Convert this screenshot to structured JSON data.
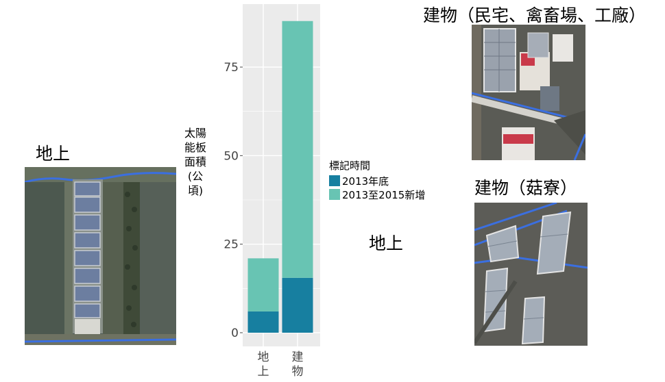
{
  "labels": {
    "ground_left": "地上",
    "building_top": "建物（民宅、禽畜場、工廠）",
    "building_mushroom": "建物（菇寮）",
    "ground_mid": "地上"
  },
  "colors": {
    "panel_bg": "#ebebeb",
    "grid": "#ffffff",
    "end_2013": "#177fa0",
    "new_2015": "#68c4b3"
  },
  "chart_data": {
    "type": "bar",
    "stacked": true,
    "categories": [
      "地上",
      "建物"
    ],
    "series": [
      {
        "name": "2013年底",
        "values": [
          6,
          15.5
        ]
      },
      {
        "name": "2013至2015新增",
        "values": [
          15,
          72.5
        ]
      }
    ],
    "ylabel": "太陽能板面積(公頃)",
    "ylim": [
      0,
      88
    ],
    "yticks": [
      0,
      25,
      50,
      75
    ],
    "ytick_labels": [
      "0",
      "25",
      "50",
      "75"
    ],
    "legend_title": "標記時間",
    "legend_position": "right",
    "grid": true
  }
}
